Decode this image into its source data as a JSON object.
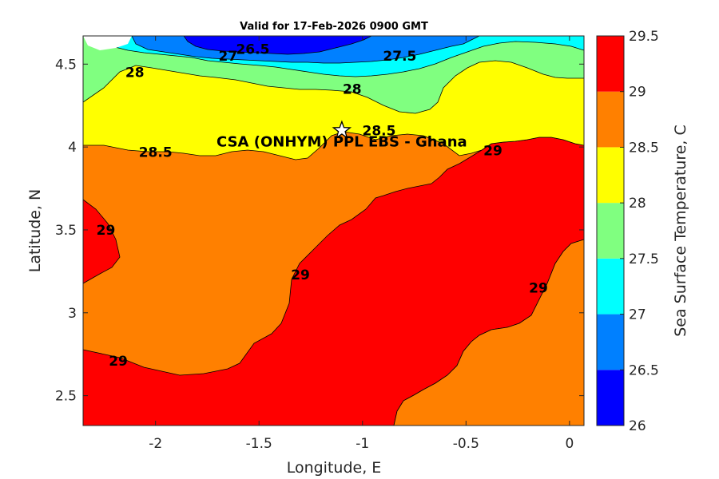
{
  "chart_data": {
    "type": "contour",
    "title": "Valid for 17-Feb-2026 0900 GMT",
    "xlabel": "Longitude, E",
    "ylabel": "Latitude, N",
    "xlim": [
      -2.35,
      0.07
    ],
    "ylim": [
      2.32,
      4.67
    ],
    "x_ticks": [
      "-2",
      "-1.5",
      "-1",
      "-0.5",
      "0"
    ],
    "y_ticks": [
      "2.5",
      "3",
      "3.5",
      "4",
      "4.5"
    ],
    "colorbar": {
      "label": "Sea Surface Temperature, C",
      "levels": [
        26,
        26.5,
        27,
        27.5,
        28,
        28.5,
        29,
        29.5
      ],
      "tick_labels": [
        "26",
        "26.5",
        "27",
        "27.5",
        "28",
        "28.5",
        "29",
        "29.5"
      ],
      "colors": [
        "#0000ff",
        "#0080ff",
        "#00ffff",
        "#80ff80",
        "#ffff00",
        "#ff8000",
        "#ff0000"
      ]
    },
    "contour_labels": [
      {
        "text": "26.5",
        "lon": -1.53,
        "lat": 4.59
      },
      {
        "text": "27",
        "lon": -1.65,
        "lat": 4.55
      },
      {
        "text": "27.5",
        "lon": -0.82,
        "lat": 4.55
      },
      {
        "text": "28",
        "lon": -2.1,
        "lat": 4.45
      },
      {
        "text": "28",
        "lon": -1.05,
        "lat": 4.35
      },
      {
        "text": "28.5",
        "lon": -2.0,
        "lat": 3.97
      },
      {
        "text": "28.5",
        "lon": -0.92,
        "lat": 4.1
      },
      {
        "text": "29",
        "lon": -0.37,
        "lat": 3.98
      },
      {
        "text": "29",
        "lon": -2.24,
        "lat": 3.5
      },
      {
        "text": "29",
        "lon": -1.3,
        "lat": 3.23
      },
      {
        "text": "29",
        "lon": -0.15,
        "lat": 3.15
      },
      {
        "text": "29",
        "lon": -2.18,
        "lat": 2.71
      }
    ],
    "site": {
      "name": "CSA (ONHYM) PPL EBS  - Ghana",
      "lon": -1.1,
      "lat": 4.1
    }
  }
}
